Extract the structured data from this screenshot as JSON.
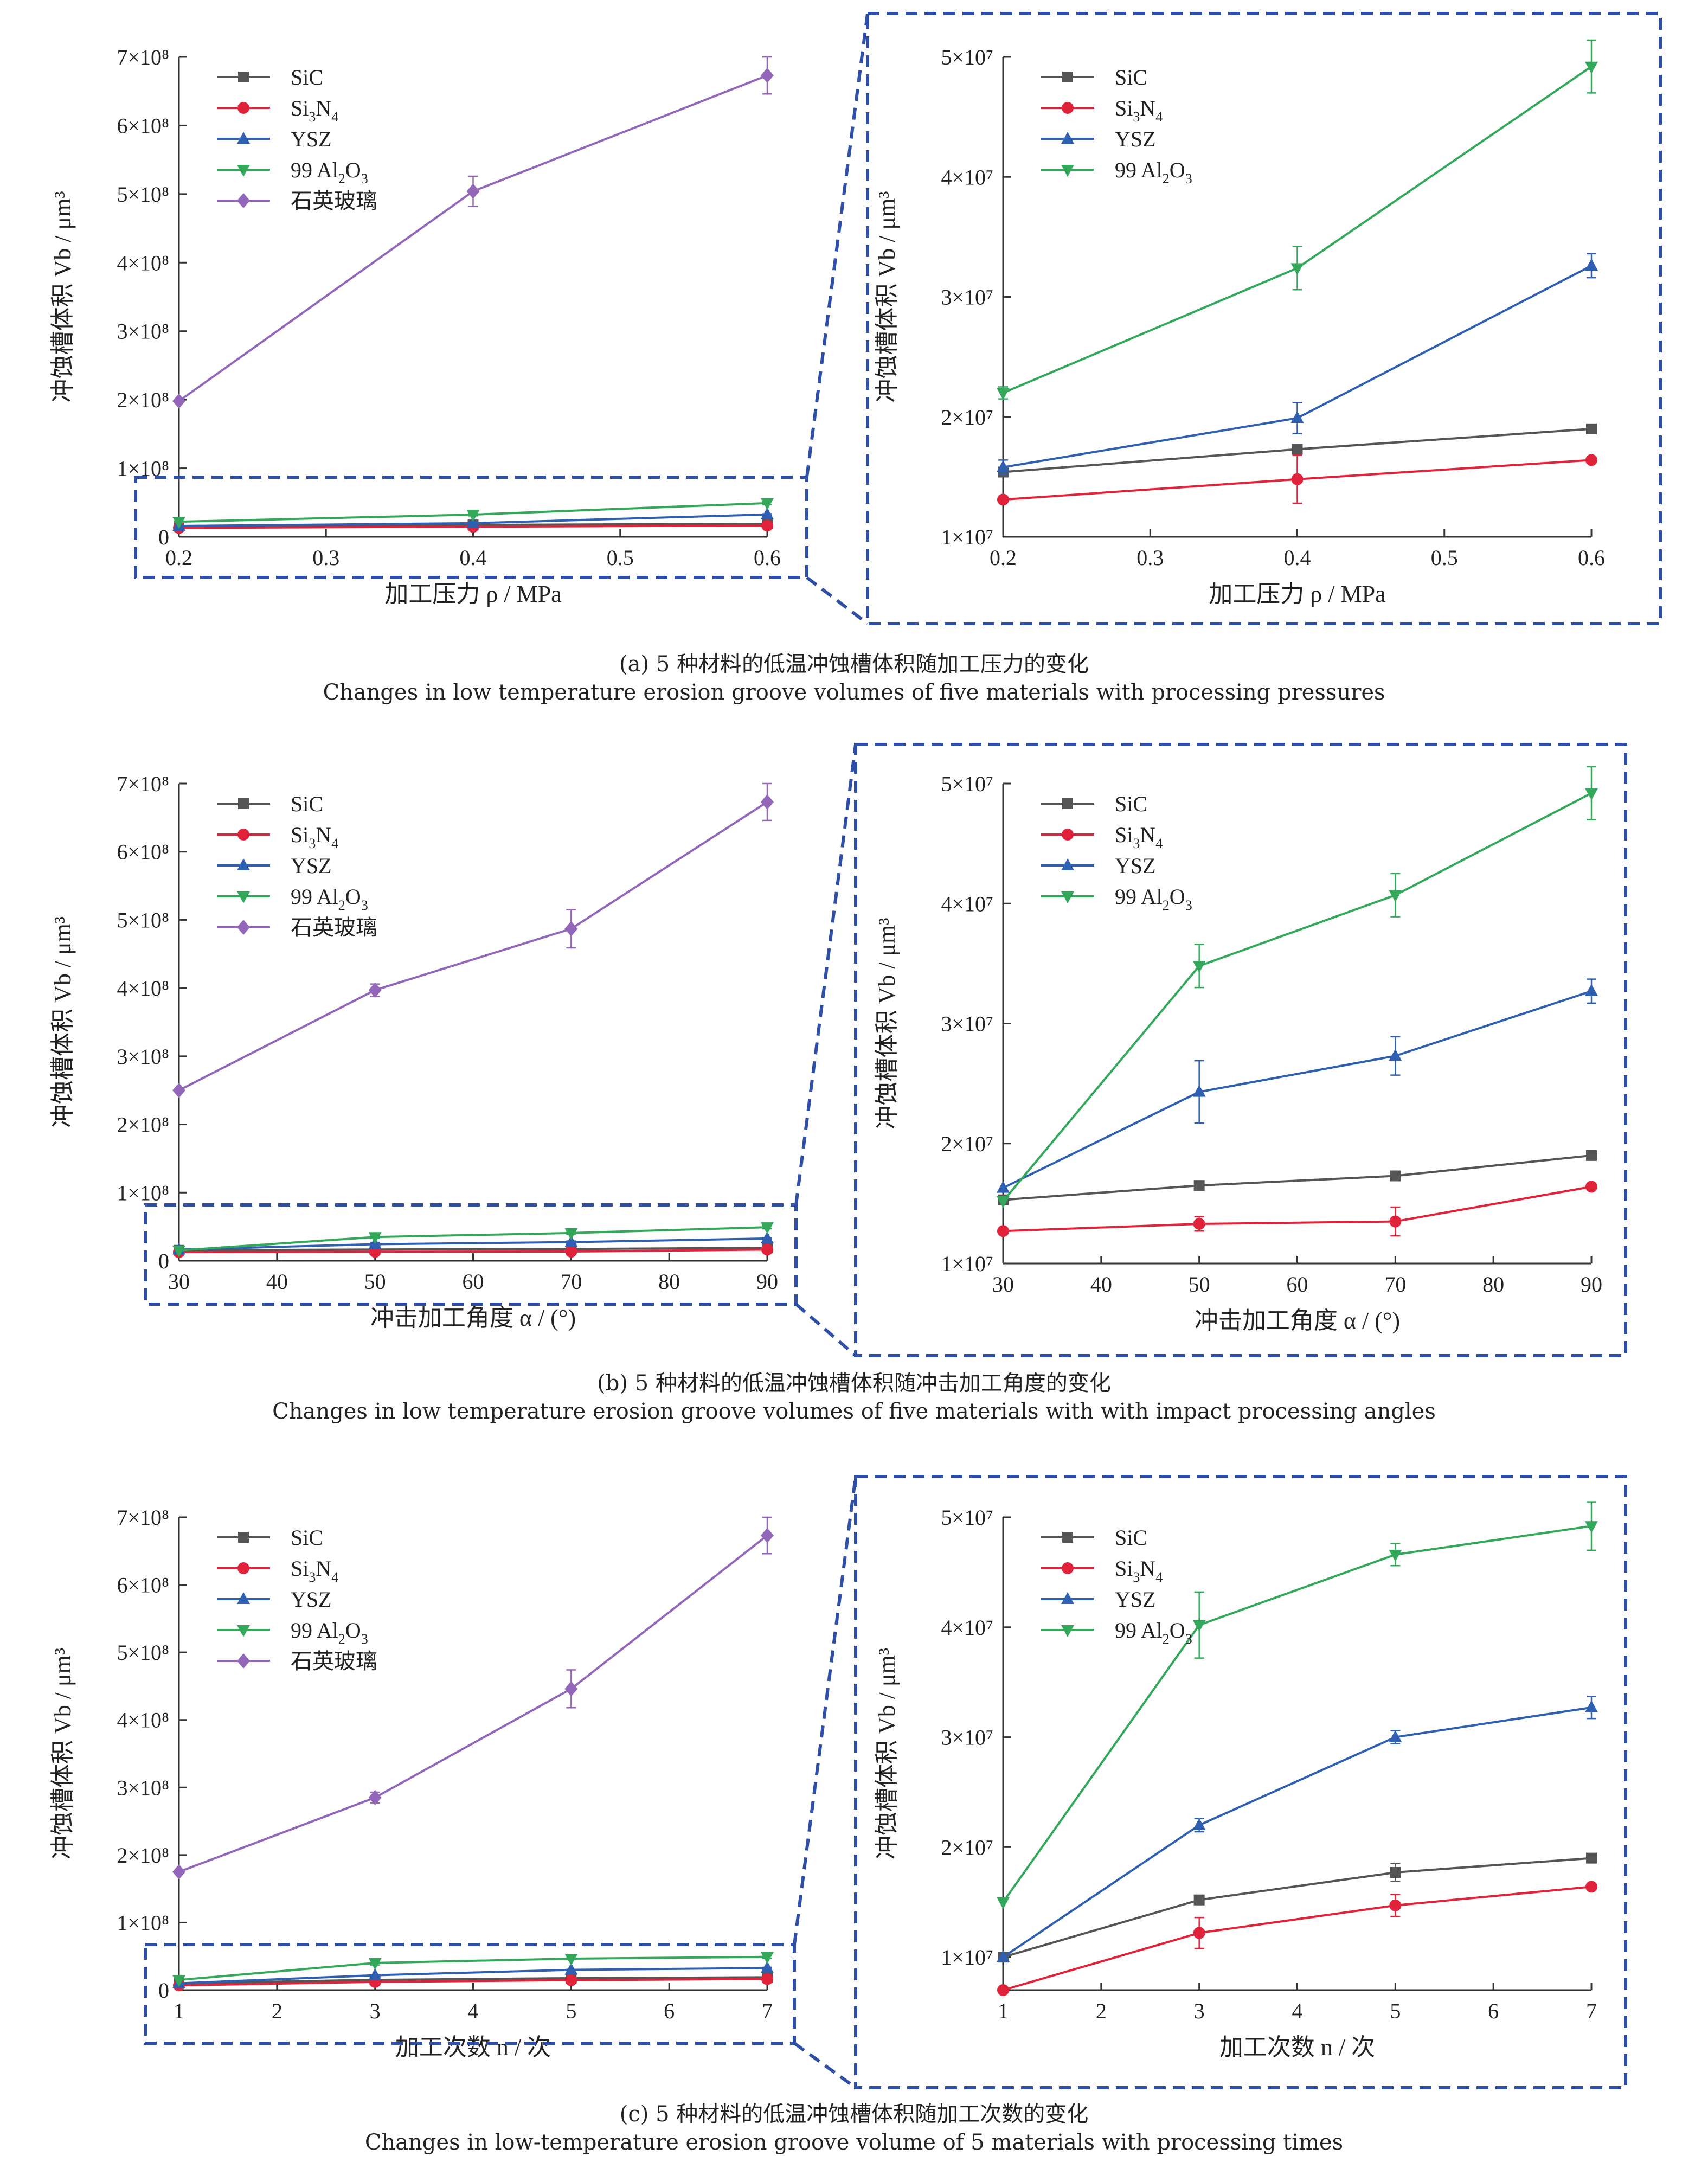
{
  "chart_data": [
    {
      "panel": "a-full",
      "type": "line",
      "xlabel": "加工压力 ρ / MPa",
      "ylabel": "冲蚀槽体积 Vb / μm³",
      "x": [
        0.2,
        0.4,
        0.6
      ],
      "xticks": [
        "0.2",
        "0.3",
        "0.4",
        "0.5",
        "0.6"
      ],
      "yticks": [
        "0",
        "1×10⁸",
        "2×10⁸",
        "3×10⁸",
        "4×10⁸",
        "5×10⁸",
        "6×10⁸",
        "7×10⁸"
      ],
      "xlim": [
        0.2,
        0.6
      ],
      "ylim": [
        0,
        700000000
      ],
      "legend": "top-left",
      "series": [
        {
          "name": "SiC",
          "values": [
            15400000,
            17300000,
            19000000
          ],
          "errors": [
            0,
            0,
            0
          ]
        },
        {
          "name": "Si3N4",
          "values": [
            13100000,
            14800000,
            16400000
          ],
          "errors": [
            0,
            2000000,
            0
          ]
        },
        {
          "name": "YSZ",
          "values": [
            15800000,
            19900000,
            32600000
          ],
          "errors": [
            600000,
            1300000,
            1000000
          ]
        },
        {
          "name": "99 Al2O3",
          "values": [
            22000000,
            32400000,
            49200000
          ],
          "errors": [
            500000,
            1800000,
            2200000
          ]
        },
        {
          "name": "石英玻璃",
          "values": [
            198000000,
            504000000,
            673000000
          ],
          "errors": [
            0,
            22000000,
            27000000
          ]
        }
      ]
    },
    {
      "panel": "a-zoom",
      "type": "line",
      "xlabel": "加工压力 ρ / MPa",
      "ylabel": "冲蚀槽体积 Vb / μm³",
      "x": [
        0.2,
        0.4,
        0.6
      ],
      "xticks": [
        "0.2",
        "0.3",
        "0.4",
        "0.5",
        "0.6"
      ],
      "yticks": [
        "1×10⁷",
        "2×10⁷",
        "3×10⁷",
        "4×10⁷",
        "5×10⁷"
      ],
      "xlim": [
        0.2,
        0.6
      ],
      "ylim": [
        10000000,
        50000000
      ],
      "legend": "top-left",
      "series": [
        {
          "name": "SiC",
          "values": [
            15400000,
            17300000,
            19000000
          ],
          "errors": [
            0,
            0,
            0
          ]
        },
        {
          "name": "Si3N4",
          "values": [
            13100000,
            14800000,
            16400000
          ],
          "errors": [
            0,
            2000000,
            0
          ]
        },
        {
          "name": "YSZ",
          "values": [
            15800000,
            19900000,
            32600000
          ],
          "errors": [
            600000,
            1300000,
            1000000
          ]
        },
        {
          "name": "99 Al2O3",
          "values": [
            22000000,
            32400000,
            49200000
          ],
          "errors": [
            500000,
            1800000,
            2200000
          ]
        }
      ]
    },
    {
      "panel": "b-full",
      "type": "line",
      "xlabel": "冲击加工角度 α / (°)",
      "ylabel": "冲蚀槽体积 Vb / μm³",
      "x": [
        30,
        50,
        70,
        90
      ],
      "xticks": [
        "30",
        "40",
        "50",
        "60",
        "70",
        "80",
        "90"
      ],
      "yticks": [
        "0",
        "1×10⁸",
        "2×10⁸",
        "3×10⁸",
        "4×10⁸",
        "5×10⁸",
        "6×10⁸",
        "7×10⁸"
      ],
      "xlim": [
        30,
        90
      ],
      "ylim": [
        0,
        700000000
      ],
      "legend": "top-left",
      "series": [
        {
          "name": "SiC",
          "values": [
            15300000,
            16500000,
            17300000,
            19000000
          ],
          "errors": [
            0,
            0,
            0,
            0
          ]
        },
        {
          "name": "Si3N4",
          "values": [
            12700000,
            13300000,
            13500000,
            16400000
          ],
          "errors": [
            0,
            600000,
            1200000,
            0
          ]
        },
        {
          "name": "YSZ",
          "values": [
            16300000,
            24300000,
            27300000,
            32700000
          ],
          "errors": [
            0,
            2600000,
            1600000,
            1000000
          ]
        },
        {
          "name": "99 Al2O3",
          "values": [
            15200000,
            34800000,
            40700000,
            49200000
          ],
          "errors": [
            0,
            1800000,
            1800000,
            2200000
          ]
        },
        {
          "name": "石英玻璃",
          "values": [
            250000000,
            397000000,
            487000000,
            673000000
          ],
          "errors": [
            0,
            9000000,
            28000000,
            27000000
          ]
        }
      ]
    },
    {
      "panel": "b-zoom",
      "type": "line",
      "xlabel": "冲击加工角度 α / (°)",
      "ylabel": "冲蚀槽体积 Vb / μm³",
      "x": [
        30,
        50,
        70,
        90
      ],
      "xticks": [
        "30",
        "40",
        "50",
        "60",
        "70",
        "80",
        "90"
      ],
      "yticks": [
        "1×10⁷",
        "2×10⁷",
        "3×10⁷",
        "4×10⁷",
        "5×10⁷"
      ],
      "xlim": [
        30,
        90
      ],
      "ylim": [
        10000000,
        50000000
      ],
      "legend": "top-left",
      "series": [
        {
          "name": "SiC",
          "values": [
            15300000,
            16500000,
            17300000,
            19000000
          ],
          "errors": [
            0,
            0,
            0,
            0
          ]
        },
        {
          "name": "Si3N4",
          "values": [
            12700000,
            13300000,
            13500000,
            16400000
          ],
          "errors": [
            0,
            600000,
            1200000,
            0
          ]
        },
        {
          "name": "YSZ",
          "values": [
            16300000,
            24300000,
            27300000,
            32700000
          ],
          "errors": [
            0,
            2600000,
            1600000,
            1000000
          ]
        },
        {
          "name": "99 Al2O3",
          "values": [
            15200000,
            34800000,
            40700000,
            49200000
          ],
          "errors": [
            0,
            1800000,
            1800000,
            2200000
          ]
        }
      ]
    },
    {
      "panel": "c-full",
      "type": "line",
      "xlabel": "加工次数 n / 次",
      "ylabel": "冲蚀槽体积 Vb / μm³",
      "x": [
        1,
        3,
        5,
        7
      ],
      "xticks": [
        "1",
        "2",
        "3",
        "4",
        "5",
        "6",
        "7"
      ],
      "yticks": [
        "0",
        "1×10⁸",
        "2×10⁸",
        "3×10⁸",
        "4×10⁸",
        "5×10⁸",
        "6×10⁸",
        "7×10⁸"
      ],
      "xlim": [
        1,
        7
      ],
      "ylim": [
        0,
        700000000
      ],
      "legend": "top-left",
      "series": [
        {
          "name": "SiC",
          "values": [
            10000000,
            15200000,
            17700000,
            19000000
          ],
          "errors": [
            0,
            0,
            800000,
            0
          ]
        },
        {
          "name": "Si3N4",
          "values": [
            7000000,
            12200000,
            14700000,
            16400000
          ],
          "errors": [
            0,
            1400000,
            1000000,
            0
          ]
        },
        {
          "name": "YSZ",
          "values": [
            10000000,
            22000000,
            30000000,
            32700000
          ],
          "errors": [
            0,
            600000,
            600000,
            1000000
          ]
        },
        {
          "name": "99 Al2O3",
          "values": [
            15000000,
            40200000,
            46600000,
            49200000
          ],
          "errors": [
            0,
            3000000,
            1000000,
            2200000
          ]
        },
        {
          "name": "石英玻璃",
          "values": [
            175000000,
            285000000,
            446000000,
            673000000
          ],
          "errors": [
            0,
            8000000,
            28000000,
            27000000
          ]
        }
      ]
    },
    {
      "panel": "c-zoom",
      "type": "line",
      "xlabel": "加工次数 n / 次",
      "ylabel": "冲蚀槽体积 Vb / μm³",
      "x": [
        1,
        3,
        5,
        7
      ],
      "xticks": [
        "1",
        "2",
        "3",
        "4",
        "5",
        "6",
        "7"
      ],
      "yticks": [
        "1×10⁷",
        "2×10⁷",
        "3×10⁷",
        "4×10⁷",
        "5×10⁷"
      ],
      "xlim": [
        1,
        7
      ],
      "ylim": [
        7000000,
        50000000
      ],
      "legend": "top-left",
      "series": [
        {
          "name": "SiC",
          "values": [
            10000000,
            15200000,
            17700000,
            19000000
          ],
          "errors": [
            0,
            0,
            800000,
            0
          ]
        },
        {
          "name": "Si3N4",
          "values": [
            7000000,
            12200000,
            14700000,
            16400000
          ],
          "errors": [
            0,
            1400000,
            1000000,
            0
          ]
        },
        {
          "name": "YSZ",
          "values": [
            10000000,
            22000000,
            30000000,
            32700000
          ],
          "errors": [
            0,
            600000,
            600000,
            1000000
          ]
        },
        {
          "name": "99 Al2O3",
          "values": [
            15000000,
            40200000,
            46600000,
            49200000
          ],
          "errors": [
            0,
            3000000,
            1000000,
            2200000
          ]
        }
      ]
    }
  ],
  "captions": {
    "a_cn": "(a) 5 种材料的低温冲蚀槽体积随加工压力的变化",
    "a_en": "Changes in low temperature erosion groove volumes of five materials with processing pressures",
    "b_cn": "(b) 5 种材料的低温冲蚀槽体积随冲击加工角度的变化",
    "b_en": "Changes in low temperature erosion groove volumes of five materials with with impact processing angles",
    "c_cn": "(c) 5 种材料的低温冲蚀槽体积随加工次数的变化",
    "c_en": "Changes in low-temperature erosion groove volume of 5 materials with processing times"
  },
  "colors": {
    "SiC": "#555555",
    "Si3N4": "#e0233a",
    "YSZ": "#2e5fb0",
    "99 Al2O3": "#33a85a",
    "石英玻璃": "#9266b8",
    "zoom_box": "#2f4fa6"
  },
  "markers": {
    "SiC": "square",
    "Si3N4": "circle",
    "YSZ": "triangle-up",
    "99 Al2O3": "triangle-down",
    "石英玻璃": "diamond"
  }
}
